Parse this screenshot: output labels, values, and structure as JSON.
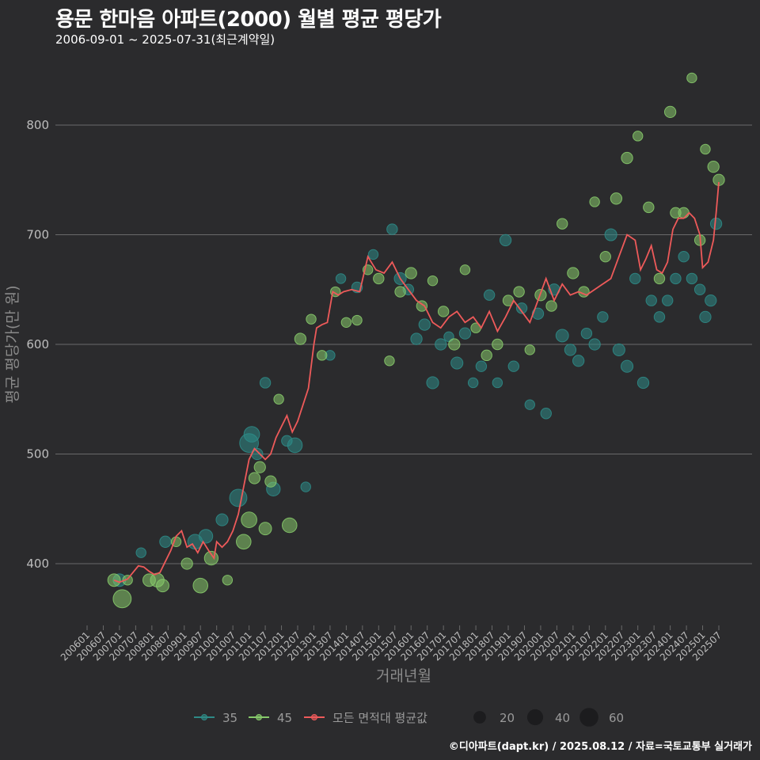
{
  "header": {
    "title": "용문 한마음 아파트(2000) 월별 평균 평당가",
    "subtitle": "2006-09-01 ~ 2025-07-31(최근계약일)"
  },
  "caption": "©디아파트(dapt.kr) / 2025.08.12 / 자료=국토교통부 실거래가",
  "colors": {
    "background": "#2b2b2d",
    "grid": "#6a6a6a",
    "series_35": "#2e8a86",
    "series_45": "#86c96a",
    "average_line": "#ee5a5a"
  },
  "chart_data": {
    "type": "scatter",
    "xlabel": "거래년월",
    "ylabel": "평균 평당가(만 원)",
    "ylim": [
      345,
      865
    ],
    "yticks": [
      400,
      500,
      600,
      700,
      800
    ],
    "xticks": [
      "200601",
      "200607",
      "200701",
      "200707",
      "200801",
      "200807",
      "200901",
      "200907",
      "201001",
      "201007",
      "201101",
      "201107",
      "201201",
      "201207",
      "201301",
      "201307",
      "201401",
      "201407",
      "201501",
      "201507",
      "201601",
      "201607",
      "201701",
      "201707",
      "201801",
      "201807",
      "201901",
      "201907",
      "202001",
      "202007",
      "202101",
      "202107",
      "202201",
      "202207",
      "202301",
      "202307",
      "202401",
      "202407",
      "202501",
      "202507"
    ],
    "legend": {
      "series": [
        {
          "label": "35",
          "color": "#2e8a86"
        },
        {
          "label": "45",
          "color": "#86c96a"
        },
        {
          "label": "모든 면적대 평균값",
          "color": "#ee5a5a"
        }
      ],
      "sizes": [
        {
          "label": "20",
          "value": 20
        },
        {
          "label": "40",
          "value": 40
        },
        {
          "label": "60",
          "value": 60
        }
      ]
    },
    "average_line": {
      "name": "모든 면적대 평균값",
      "points": [
        [
          "2006-11",
          385
        ],
        [
          "2007-01",
          383
        ],
        [
          "2007-04",
          386
        ],
        [
          "2007-06",
          392
        ],
        [
          "2007-08",
          398
        ],
        [
          "2007-10",
          397
        ],
        [
          "2007-12",
          393
        ],
        [
          "2008-02",
          390
        ],
        [
          "2008-04",
          392
        ],
        [
          "2008-06",
          402
        ],
        [
          "2008-08",
          412
        ],
        [
          "2008-10",
          425
        ],
        [
          "2008-12",
          430
        ],
        [
          "2009-02",
          415
        ],
        [
          "2009-04",
          418
        ],
        [
          "2009-06",
          410
        ],
        [
          "2009-08",
          420
        ],
        [
          "2009-10",
          412
        ],
        [
          "2009-12",
          405
        ],
        [
          "2010-01",
          420
        ],
        [
          "2010-03",
          415
        ],
        [
          "2010-05",
          420
        ],
        [
          "2010-07",
          430
        ],
        [
          "2010-09",
          445
        ],
        [
          "2010-11",
          470
        ],
        [
          "2011-01",
          495
        ],
        [
          "2011-03",
          505
        ],
        [
          "2011-05",
          500
        ],
        [
          "2011-07",
          495
        ],
        [
          "2011-09",
          500
        ],
        [
          "2011-11",
          515
        ],
        [
          "2012-01",
          525
        ],
        [
          "2012-03",
          535
        ],
        [
          "2012-05",
          520
        ],
        [
          "2012-07",
          530
        ],
        [
          "2012-09",
          545
        ],
        [
          "2012-11",
          560
        ],
        [
          "2013-01",
          600
        ],
        [
          "2013-02",
          615
        ],
        [
          "2013-04",
          618
        ],
        [
          "2013-06",
          620
        ],
        [
          "2013-08",
          648
        ],
        [
          "2013-10",
          645
        ],
        [
          "2013-12",
          648
        ],
        [
          "2014-03",
          650
        ],
        [
          "2014-06",
          648
        ],
        [
          "2014-09",
          680
        ],
        [
          "2014-12",
          668
        ],
        [
          "2015-03",
          665
        ],
        [
          "2015-06",
          675
        ],
        [
          "2015-09",
          660
        ],
        [
          "2015-12",
          650
        ],
        [
          "2016-03",
          640
        ],
        [
          "2016-06",
          635
        ],
        [
          "2016-09",
          620
        ],
        [
          "2016-12",
          615
        ],
        [
          "2017-03",
          625
        ],
        [
          "2017-06",
          630
        ],
        [
          "2017-09",
          620
        ],
        [
          "2017-12",
          625
        ],
        [
          "2018-03",
          615
        ],
        [
          "2018-06",
          630
        ],
        [
          "2018-09",
          612
        ],
        [
          "2018-12",
          625
        ],
        [
          "2019-03",
          640
        ],
        [
          "2019-06",
          630
        ],
        [
          "2019-09",
          620
        ],
        [
          "2019-12",
          640
        ],
        [
          "2020-03",
          660
        ],
        [
          "2020-06",
          640
        ],
        [
          "2020-09",
          655
        ],
        [
          "2020-12",
          645
        ],
        [
          "2021-03",
          648
        ],
        [
          "2021-06",
          645
        ],
        [
          "2021-09",
          650
        ],
        [
          "2021-12",
          655
        ],
        [
          "2022-03",
          660
        ],
        [
          "2022-06",
          680
        ],
        [
          "2022-09",
          700
        ],
        [
          "2022-12",
          695
        ],
        [
          "2023-02",
          668
        ],
        [
          "2023-04",
          678
        ],
        [
          "2023-06",
          690
        ],
        [
          "2023-08",
          668
        ],
        [
          "2023-10",
          665
        ],
        [
          "2023-12",
          675
        ],
        [
          "2024-02",
          705
        ],
        [
          "2024-04",
          715
        ],
        [
          "2024-06",
          715
        ],
        [
          "2024-08",
          720
        ],
        [
          "2024-10",
          715
        ],
        [
          "2024-12",
          700
        ],
        [
          "2025-01",
          670
        ],
        [
          "2025-03",
          675
        ],
        [
          "2025-05",
          695
        ],
        [
          "2025-06",
          720
        ],
        [
          "2025-07",
          748
        ]
      ]
    },
    "series": [
      {
        "name": "35",
        "points": [
          [
            "2007-01",
            385,
            8
          ],
          [
            "2007-09",
            410,
            4
          ],
          [
            "2008-06",
            420,
            6
          ],
          [
            "2009-05",
            420,
            12
          ],
          [
            "2009-09",
            425,
            10
          ],
          [
            "2010-03",
            440,
            7
          ],
          [
            "2010-09",
            460,
            18
          ],
          [
            "2011-01",
            510,
            22
          ],
          [
            "2011-02",
            518,
            14
          ],
          [
            "2011-04",
            500,
            6
          ],
          [
            "2011-07",
            565,
            5
          ],
          [
            "2011-10",
            468,
            10
          ],
          [
            "2012-03",
            512,
            5
          ],
          [
            "2012-06",
            508,
            12
          ],
          [
            "2012-10",
            470,
            4
          ],
          [
            "2013-07",
            590,
            4
          ],
          [
            "2013-11",
            660,
            4
          ],
          [
            "2014-05",
            652,
            5
          ],
          [
            "2014-11",
            682,
            4
          ],
          [
            "2015-06",
            705,
            5
          ],
          [
            "2015-09",
            660,
            7
          ],
          [
            "2015-12",
            650,
            5
          ],
          [
            "2016-03",
            605,
            6
          ],
          [
            "2016-06",
            618,
            6
          ],
          [
            "2016-09",
            565,
            7
          ],
          [
            "2016-12",
            600,
            6
          ],
          [
            "2017-03",
            607,
            4
          ],
          [
            "2017-06",
            583,
            7
          ],
          [
            "2017-09",
            610,
            6
          ],
          [
            "2017-12",
            565,
            4
          ],
          [
            "2018-03",
            580,
            5
          ],
          [
            "2018-06",
            645,
            5
          ],
          [
            "2018-09",
            565,
            4
          ],
          [
            "2018-12",
            695,
            6
          ],
          [
            "2019-03",
            580,
            5
          ],
          [
            "2019-06",
            633,
            5
          ],
          [
            "2019-09",
            545,
            4
          ],
          [
            "2019-12",
            628,
            6
          ],
          [
            "2020-03",
            537,
            5
          ],
          [
            "2020-06",
            650,
            6
          ],
          [
            "2020-09",
            608,
            8
          ],
          [
            "2020-12",
            595,
            6
          ],
          [
            "2021-03",
            585,
            6
          ],
          [
            "2021-06",
            610,
            5
          ],
          [
            "2021-09",
            600,
            6
          ],
          [
            "2021-12",
            625,
            5
          ],
          [
            "2022-03",
            700,
            7
          ],
          [
            "2022-06",
            595,
            7
          ],
          [
            "2022-09",
            580,
            7
          ],
          [
            "2022-12",
            660,
            5
          ],
          [
            "2023-03",
            565,
            6
          ],
          [
            "2023-06",
            640,
            5
          ],
          [
            "2023-09",
            625,
            5
          ],
          [
            "2023-12",
            640,
            5
          ],
          [
            "2024-03",
            660,
            5
          ],
          [
            "2024-06",
            680,
            5
          ],
          [
            "2024-09",
            660,
            5
          ],
          [
            "2024-12",
            650,
            5
          ],
          [
            "2025-02",
            625,
            6
          ],
          [
            "2025-04",
            640,
            6
          ],
          [
            "2025-06",
            710,
            6
          ]
        ]
      },
      {
        "name": "45",
        "points": [
          [
            "2006-11",
            385,
            8
          ],
          [
            "2007-02",
            368,
            20
          ],
          [
            "2007-04",
            385,
            4
          ],
          [
            "2007-12",
            385,
            8
          ],
          [
            "2008-03",
            385,
            10
          ],
          [
            "2008-05",
            380,
            8
          ],
          [
            "2008-10",
            420,
            4
          ],
          [
            "2009-02",
            400,
            6
          ],
          [
            "2009-07",
            380,
            12
          ],
          [
            "2009-11",
            405,
            10
          ],
          [
            "2010-05",
            385,
            4
          ],
          [
            "2010-11",
            420,
            12
          ],
          [
            "2011-01",
            440,
            14
          ],
          [
            "2011-03",
            478,
            6
          ],
          [
            "2011-05",
            488,
            6
          ],
          [
            "2011-07",
            432,
            8
          ],
          [
            "2011-09",
            475,
            6
          ],
          [
            "2011-12",
            550,
            4
          ],
          [
            "2012-04",
            435,
            12
          ],
          [
            "2012-08",
            605,
            6
          ],
          [
            "2012-12",
            623,
            4
          ],
          [
            "2013-04",
            590,
            4
          ],
          [
            "2013-09",
            648,
            4
          ],
          [
            "2014-01",
            620,
            4
          ],
          [
            "2014-05",
            622,
            4
          ],
          [
            "2014-09",
            668,
            4
          ],
          [
            "2015-01",
            660,
            5
          ],
          [
            "2015-05",
            585,
            4
          ],
          [
            "2015-09",
            648,
            5
          ],
          [
            "2016-01",
            665,
            6
          ],
          [
            "2016-05",
            635,
            5
          ],
          [
            "2016-09",
            658,
            4
          ],
          [
            "2017-01",
            630,
            5
          ],
          [
            "2017-05",
            600,
            6
          ],
          [
            "2017-09",
            668,
            4
          ],
          [
            "2018-01",
            615,
            4
          ],
          [
            "2018-05",
            590,
            5
          ],
          [
            "2018-09",
            600,
            5
          ],
          [
            "2019-01",
            640,
            5
          ],
          [
            "2019-05",
            648,
            5
          ],
          [
            "2019-09",
            595,
            4
          ],
          [
            "2020-01",
            645,
            6
          ],
          [
            "2020-05",
            635,
            5
          ],
          [
            "2020-09",
            710,
            5
          ],
          [
            "2021-01",
            665,
            6
          ],
          [
            "2021-05",
            648,
            5
          ],
          [
            "2021-09",
            730,
            4
          ],
          [
            "2022-01",
            680,
            5
          ],
          [
            "2022-05",
            733,
            6
          ],
          [
            "2022-09",
            770,
            6
          ],
          [
            "2023-01",
            790,
            4
          ],
          [
            "2023-05",
            725,
            5
          ],
          [
            "2023-09",
            660,
            5
          ],
          [
            "2024-01",
            812,
            6
          ],
          [
            "2024-03",
            720,
            5
          ],
          [
            "2024-06",
            720,
            5
          ],
          [
            "2024-09",
            843,
            4
          ],
          [
            "2024-12",
            695,
            5
          ],
          [
            "2025-02",
            778,
            4
          ],
          [
            "2025-05",
            762,
            6
          ],
          [
            "2025-07",
            750,
            6
          ]
        ]
      }
    ]
  }
}
